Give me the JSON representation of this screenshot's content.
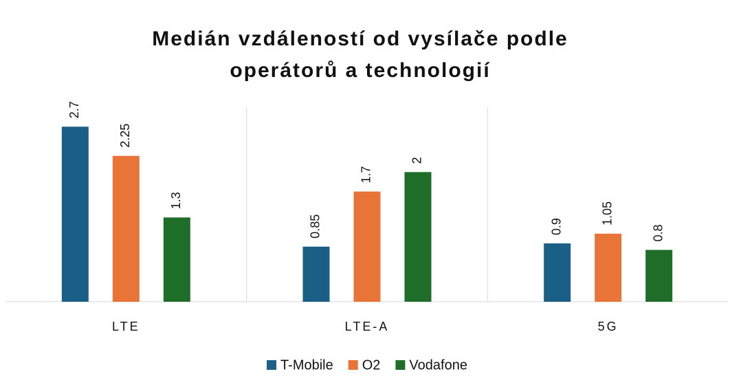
{
  "chart_data": {
    "type": "bar",
    "title": [
      "Medián vzdáleností od vysílače podle",
      "operátorů a technologií"
    ],
    "categories": [
      "LTE",
      "LTE-A",
      "5G"
    ],
    "series": [
      {
        "name": "T-Mobile",
        "color": "#1a5f85",
        "values": [
          2.7,
          0.85,
          0.9
        ]
      },
      {
        "name": "O2",
        "color": "#e87537",
        "values": [
          2.25,
          1.7,
          1.05
        ]
      },
      {
        "name": "Vodafone",
        "color": "#1e6e2a",
        "values": [
          1.3,
          2,
          0.8
        ]
      }
    ],
    "ylim": [
      0,
      3
    ],
    "legend": "bottom"
  }
}
